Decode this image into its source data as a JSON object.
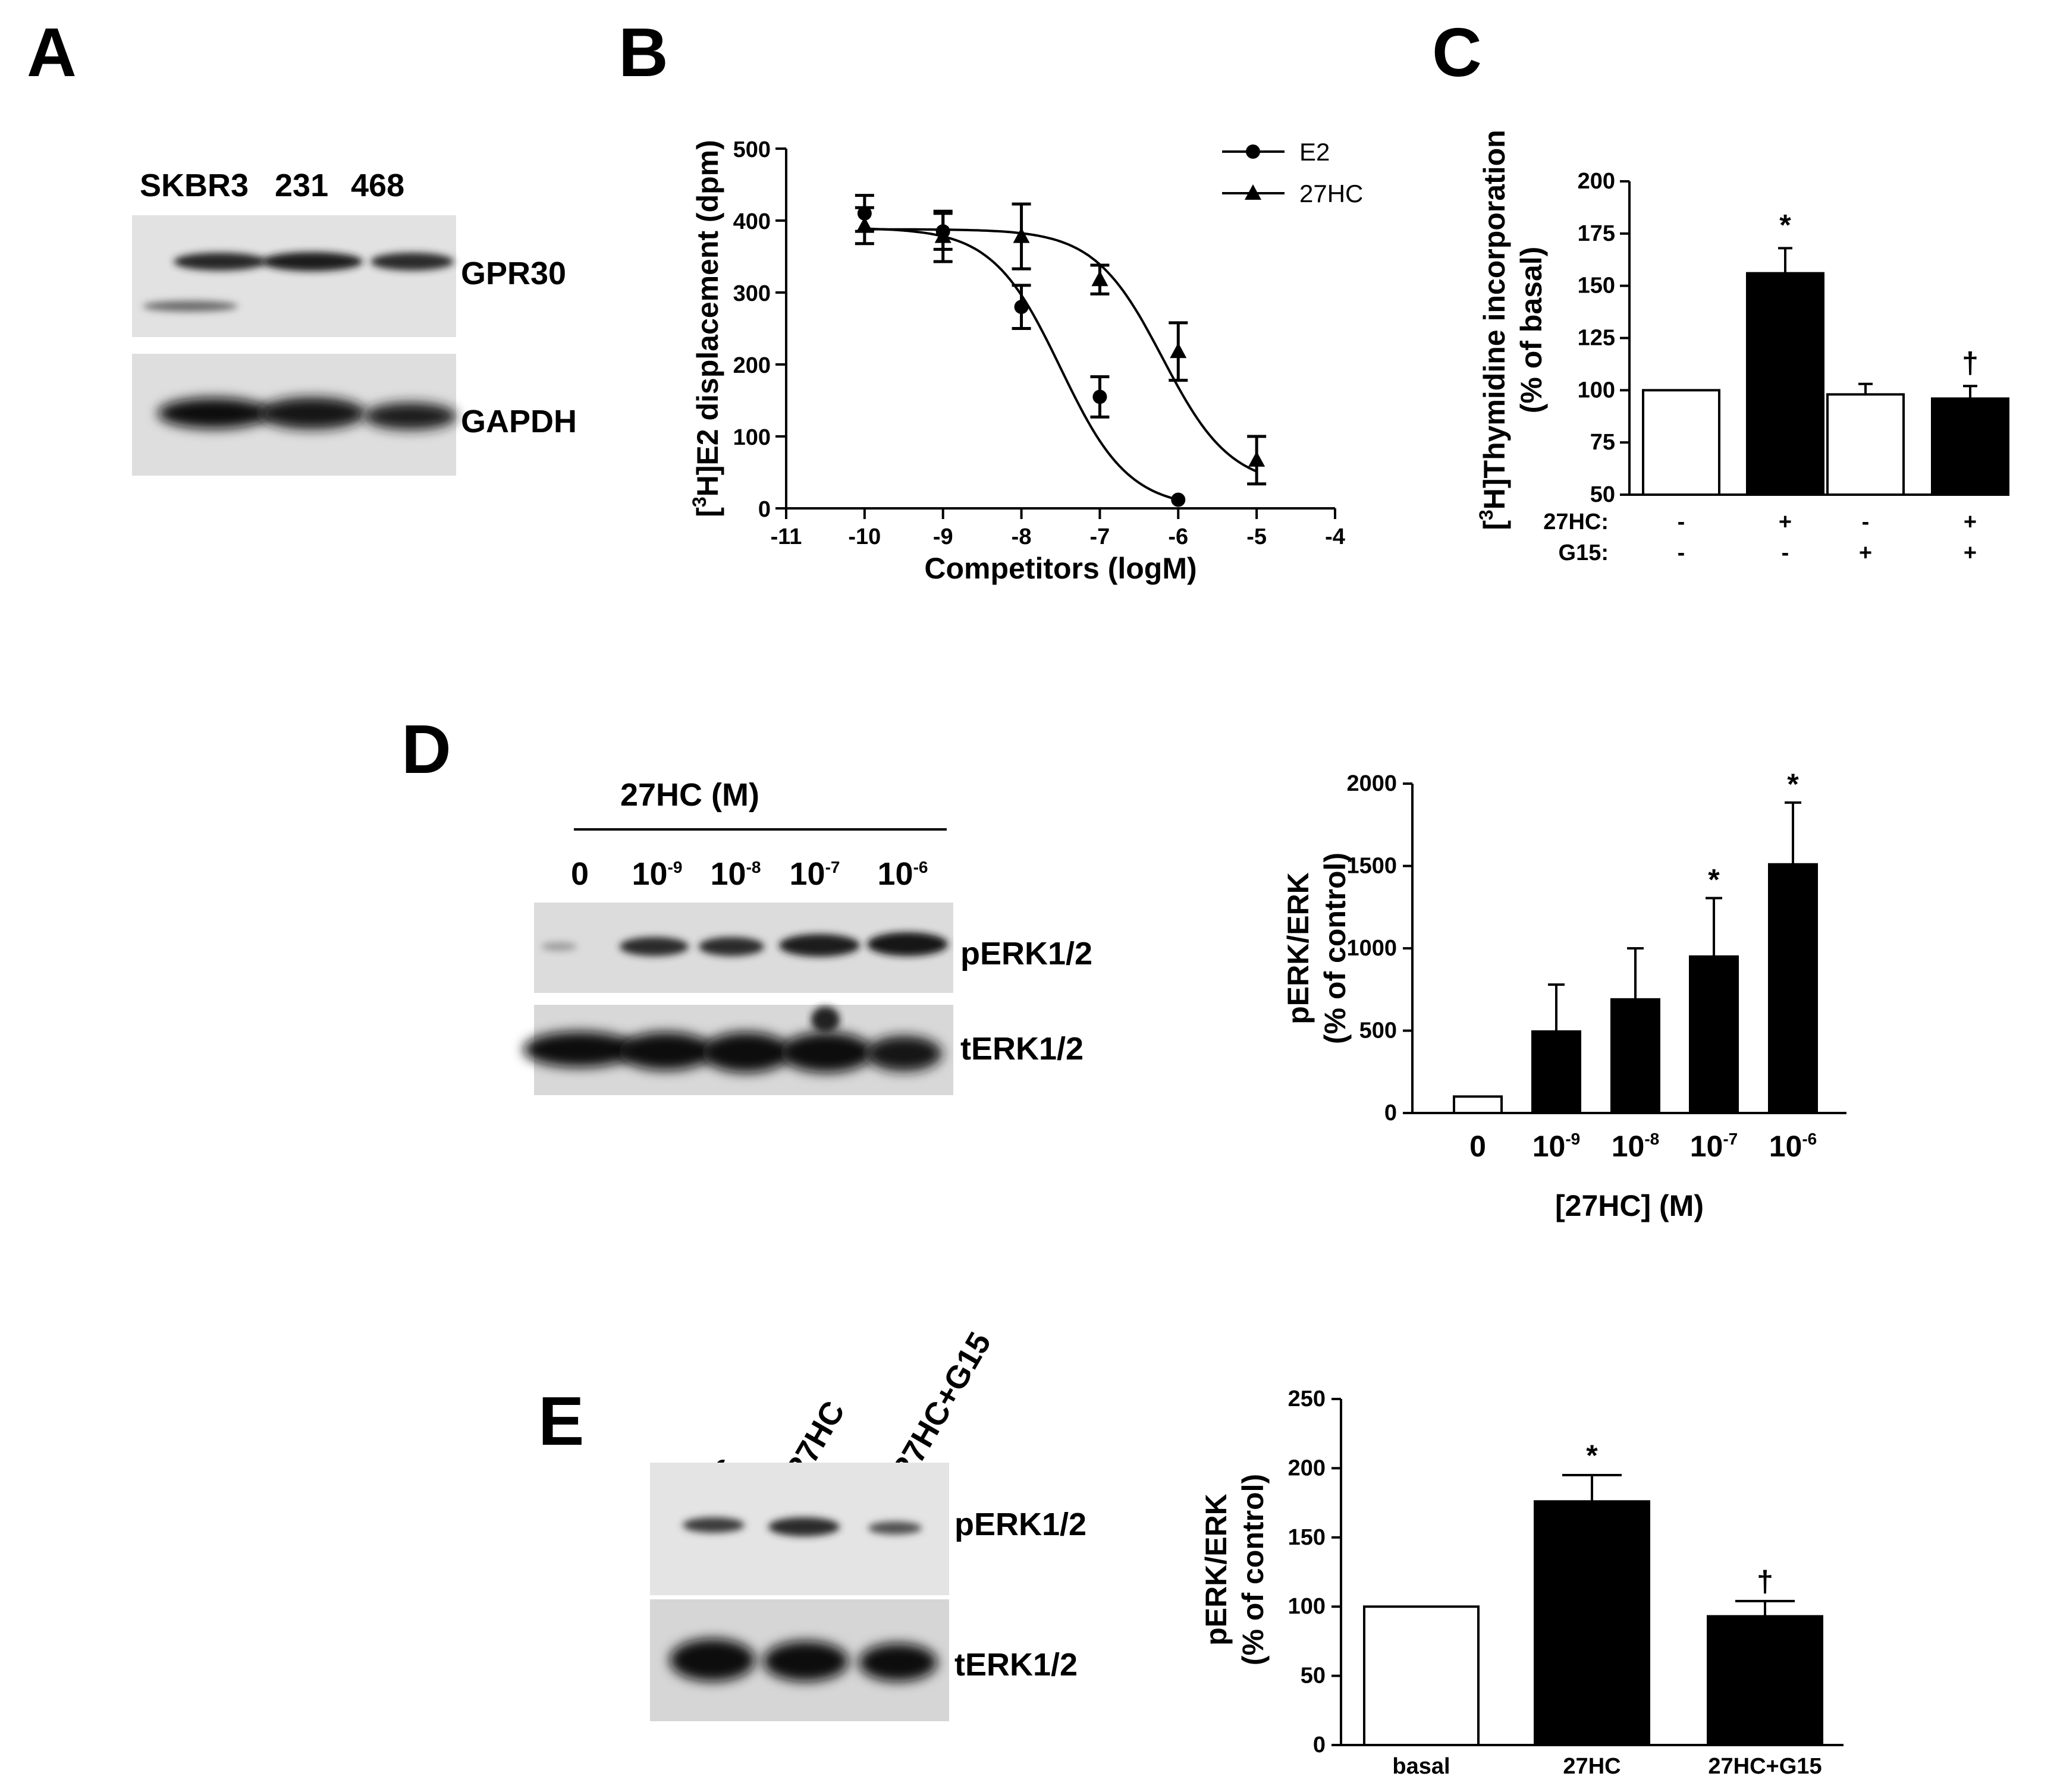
{
  "panels": {
    "A": {
      "letter": "A",
      "lanes": [
        "SKBR3",
        "231",
        "468"
      ],
      "bands": [
        "GPR30",
        "GAPDH"
      ]
    },
    "B": {
      "letter": "B"
    },
    "C": {
      "letter": "C"
    },
    "D": {
      "letter": "D",
      "treatment_header": "27HC (M)",
      "lanes": [
        {
          "base": "0",
          "exp": ""
        },
        {
          "base": "10",
          "exp": "-9"
        },
        {
          "base": "10",
          "exp": "-8"
        },
        {
          "base": "10",
          "exp": "-7"
        },
        {
          "base": "10",
          "exp": "-6"
        }
      ],
      "bands": [
        "pERK1/2",
        "tERK1/2"
      ]
    },
    "E": {
      "letter": "E",
      "lanes": [
        "c",
        "27HC",
        "27HC+G15"
      ],
      "bands": [
        "pERK1/2",
        "tERK1/2"
      ]
    }
  },
  "chart_data": [
    {
      "id": "B",
      "type": "scatter",
      "xlabel": "Competitors (logM)",
      "ylabel": "[3H]E2 displacement (dpm)",
      "ylabel_parts": {
        "open": "[",
        "sup": "3",
        "rest": "H]E2 displacement (dpm)"
      },
      "xlim": [
        -11,
        -4
      ],
      "ylim": [
        0,
        500
      ],
      "xticks": [
        -11,
        -10,
        -9,
        -8,
        -7,
        -6,
        -5,
        -4
      ],
      "yticks": [
        0,
        100,
        200,
        300,
        400,
        500
      ],
      "legend_position": "top-right",
      "fitted_curves": true,
      "series": [
        {
          "name": "E2",
          "marker": "circle",
          "x": [
            -10,
            -9,
            -8,
            -7,
            -6
          ],
          "y": [
            410,
            385,
            280,
            155,
            12
          ],
          "err": [
            25,
            25,
            30,
            28,
            0
          ]
        },
        {
          "name": "27HC",
          "marker": "triangle",
          "x": [
            -10,
            -9,
            -8,
            -7,
            -6,
            -5
          ],
          "y": [
            393,
            378,
            378,
            318,
            218,
            67
          ],
          "err": [
            25,
            35,
            45,
            20,
            40,
            33
          ]
        }
      ]
    },
    {
      "id": "C",
      "type": "bar",
      "ylabel_line1": "[3H]Thymidine incorporation",
      "ylabel_line1_parts": {
        "open": "[",
        "sup": "3",
        "rest": "H]Thymidine incorporation"
      },
      "ylabel_line2": "(% of basal)",
      "ylim": [
        50,
        200
      ],
      "yticks": [
        50,
        75,
        100,
        125,
        150,
        175,
        200
      ],
      "values": [
        100,
        156,
        98,
        96
      ],
      "errors": [
        0,
        12,
        5,
        6
      ],
      "fills": [
        "white",
        "black",
        "white",
        "black"
      ],
      "annotations": [
        "",
        "*",
        "",
        "†"
      ],
      "condition_rows": [
        {
          "label": "27HC:",
          "marks": [
            "-",
            "+",
            "-",
            "+"
          ]
        },
        {
          "label": "G15:",
          "marks": [
            "-",
            "-",
            "+",
            "+"
          ]
        }
      ]
    },
    {
      "id": "D",
      "type": "bar",
      "ylabel_line1": "pERK/ERK",
      "ylabel_line2": "(% of control)",
      "xlabel": "[27HC] (M)",
      "categories": [
        {
          "base": "0",
          "exp": ""
        },
        {
          "base": "10",
          "exp": "-9"
        },
        {
          "base": "10",
          "exp": "-8"
        },
        {
          "base": "10",
          "exp": "-7"
        },
        {
          "base": "10",
          "exp": "-6"
        }
      ],
      "ylim": [
        0,
        2000
      ],
      "yticks": [
        0,
        500,
        1000,
        1500,
        2000
      ],
      "values": [
        100,
        495,
        690,
        950,
        1510
      ],
      "errors": [
        0,
        285,
        310,
        355,
        375
      ],
      "fills": [
        "white",
        "black",
        "black",
        "black",
        "black"
      ],
      "annotations": [
        "",
        "",
        "",
        "*",
        "*"
      ]
    },
    {
      "id": "E",
      "type": "bar",
      "ylabel_line1": "pERK/ERK",
      "ylabel_line2": "(% of control)",
      "categories": [
        "basal",
        "27HC",
        "27HC+G15"
      ],
      "ylim": [
        0,
        250
      ],
      "yticks": [
        0,
        50,
        100,
        150,
        200,
        250
      ],
      "values": [
        100,
        176,
        93
      ],
      "errors": [
        0,
        19,
        11
      ],
      "fills": [
        "white",
        "black",
        "black"
      ],
      "annotations": [
        "",
        "*",
        "†"
      ]
    }
  ]
}
